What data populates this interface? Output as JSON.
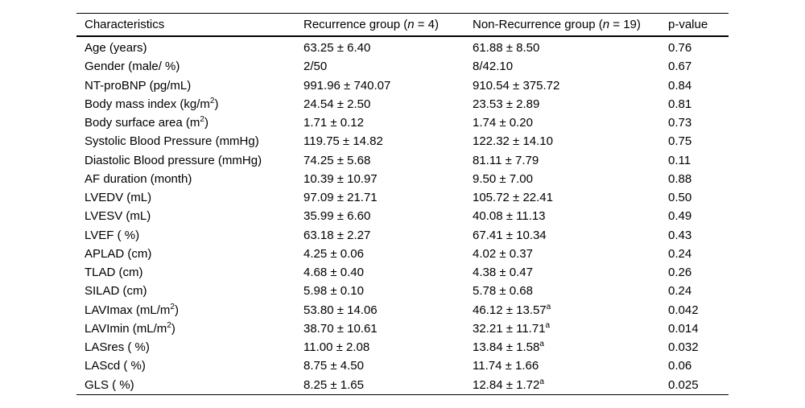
{
  "colors": {
    "background": "#ffffff",
    "text": "#000000",
    "rule": "#000000"
  },
  "table": {
    "header": {
      "characteristics": "Characteristics",
      "recurrence": {
        "before": "Recurrence group (",
        "n": "n",
        "after": " = 4)"
      },
      "non_recurrence": {
        "before": "Non-Recurrence group (",
        "n": "n",
        "after": " = 19)"
      },
      "p_value": "p-value"
    },
    "rows": [
      {
        "label": {
          "main": "Age (years)"
        },
        "recurrence": {
          "main": "63.25 ± 6.40"
        },
        "non_recurrence": {
          "main": "61.88 ± 8.50"
        },
        "p": "0.76"
      },
      {
        "label": {
          "main": "Gender (male/ %)"
        },
        "recurrence": {
          "main": "2/50"
        },
        "non_recurrence": {
          "main": "8/42.10"
        },
        "p": "0.67"
      },
      {
        "label": {
          "main": "NT-proBNP (pg/mL)"
        },
        "recurrence": {
          "main": "991.96 ± 740.07"
        },
        "non_recurrence": {
          "main": "910.54 ± 375.72"
        },
        "p": "0.84"
      },
      {
        "label": {
          "main": "Body mass index (kg/m",
          "sup": "2",
          "after": ")"
        },
        "recurrence": {
          "main": "24.54 ± 2.50"
        },
        "non_recurrence": {
          "main": "23.53 ± 2.89"
        },
        "p": "0.81"
      },
      {
        "label": {
          "main": "Body surface area (m",
          "sup": "2",
          "after": ")"
        },
        "recurrence": {
          "main": "1.71 ± 0.12"
        },
        "non_recurrence": {
          "main": "1.74 ± 0.20"
        },
        "p": "0.73"
      },
      {
        "label": {
          "main": "Systolic Blood Pressure (mmHg)"
        },
        "recurrence": {
          "main": "119.75 ± 14.82"
        },
        "non_recurrence": {
          "main": "122.32 ± 14.10"
        },
        "p": "0.75"
      },
      {
        "label": {
          "main": "Diastolic Blood pressure (mmHg)"
        },
        "recurrence": {
          "main": "74.25 ± 5.68"
        },
        "non_recurrence": {
          "main": "81.11 ± 7.79"
        },
        "p": "0.11"
      },
      {
        "label": {
          "main": "AF duration (month)"
        },
        "recurrence": {
          "main": "10.39 ± 10.97"
        },
        "non_recurrence": {
          "main": "9.50 ± 7.00"
        },
        "p": "0.88"
      },
      {
        "label": {
          "main": "LVEDV (mL)"
        },
        "recurrence": {
          "main": "97.09 ± 21.71"
        },
        "non_recurrence": {
          "main": "105.72 ± 22.41"
        },
        "p": "0.50"
      },
      {
        "label": {
          "main": "LVESV (mL)"
        },
        "recurrence": {
          "main": "35.99 ± 6.60"
        },
        "non_recurrence": {
          "main": "40.08 ± 11.13"
        },
        "p": "0.49"
      },
      {
        "label": {
          "main": "LVEF ( %)"
        },
        "recurrence": {
          "main": "63.18 ± 2.27"
        },
        "non_recurrence": {
          "main": "67.41 ± 10.34"
        },
        "p": "0.43"
      },
      {
        "label": {
          "main": "APLAD (cm)"
        },
        "recurrence": {
          "main": "4.25 ± 0.06"
        },
        "non_recurrence": {
          "main": "4.02 ± 0.37"
        },
        "p": "0.24"
      },
      {
        "label": {
          "main": "TLAD (cm)"
        },
        "recurrence": {
          "main": "4.68 ± 0.40"
        },
        "non_recurrence": {
          "main": "4.38 ± 0.47"
        },
        "p": "0.26"
      },
      {
        "label": {
          "main": "SILAD (cm)"
        },
        "recurrence": {
          "main": "5.98 ± 0.10"
        },
        "non_recurrence": {
          "main": "5.78 ± 0.68"
        },
        "p": "0.24"
      },
      {
        "label": {
          "main": "LAVImax (mL/m",
          "sup": "2",
          "after": ")"
        },
        "recurrence": {
          "main": "53.80 ± 14.06"
        },
        "non_recurrence": {
          "main": "46.12 ± 13.57",
          "sup": "a"
        },
        "p": "0.042"
      },
      {
        "label": {
          "main": "LAVImin (mL/m",
          "sup": "2",
          "after": ")"
        },
        "recurrence": {
          "main": "38.70 ± 10.61"
        },
        "non_recurrence": {
          "main": "32.21 ± 11.71",
          "sup": "a"
        },
        "p": "0.014"
      },
      {
        "label": {
          "main": "LASres ( %)"
        },
        "recurrence": {
          "main": "11.00 ± 2.08"
        },
        "non_recurrence": {
          "main": "13.84 ± 1.58",
          "sup": "a"
        },
        "p": "0.032"
      },
      {
        "label": {
          "main": "LAScd ( %)"
        },
        "recurrence": {
          "main": "8.75 ± 4.50"
        },
        "non_recurrence": {
          "main": "11.74 ± 1.66"
        },
        "p": "0.06"
      },
      {
        "label": {
          "main": "GLS ( %)"
        },
        "recurrence": {
          "main": "8.25 ± 1.65"
        },
        "non_recurrence": {
          "main": "12.84 ± 1.72",
          "sup": "a"
        },
        "p": "0.025"
      }
    ]
  }
}
